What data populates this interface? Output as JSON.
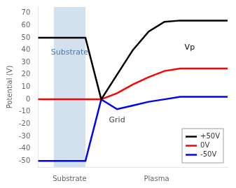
{
  "chart_data": {
    "type": "line",
    "ylabel": "Potential (V)",
    "x": [
      0.0,
      0.5,
      1.5,
      2.0,
      2.5,
      3.0,
      3.5,
      4.0,
      4.5,
      5.0,
      5.5,
      6.0
    ],
    "series": [
      {
        "name": "+50V",
        "color": "#000000",
        "values": [
          50,
          50,
          50,
          0,
          20,
          40,
          55,
          63,
          64,
          64,
          64,
          64
        ]
      },
      {
        "name": "0V",
        "color": "#ff0000",
        "values": [
          0,
          0,
          0,
          0,
          5,
          12,
          18,
          23,
          25,
          25,
          25,
          25
        ]
      },
      {
        "name": "-50V",
        "color": "#0000ff",
        "values": [
          -50,
          -50,
          -50,
          0,
          -8,
          -5,
          -2,
          0,
          2,
          2,
          2,
          2
        ]
      }
    ],
    "xlim": [
      0.0,
      6.0
    ],
    "xticks": [
      {
        "value": 1.0,
        "label": "Substrate"
      },
      {
        "value": 3.75,
        "label": "Plasma"
      }
    ],
    "ylim": [
      -55,
      75
    ],
    "yticks": [
      -50,
      -40,
      -30,
      -20,
      -10,
      0,
      10,
      20,
      30,
      40,
      50,
      60,
      70
    ],
    "shaded_regions": [
      {
        "x": [
          0.5,
          1.5
        ],
        "color": "#a8c4e0"
      }
    ],
    "annotations": [
      {
        "text": "Substrate",
        "x": 1.0,
        "y": 38,
        "color": "#4a7aaa"
      },
      {
        "text": "Grid",
        "x": 2.5,
        "y": -17,
        "color": "#444444"
      },
      {
        "text": "Vp",
        "x": 4.8,
        "y": 42,
        "color": "#000000"
      }
    ],
    "legend": "lower right",
    "grid": false
  }
}
